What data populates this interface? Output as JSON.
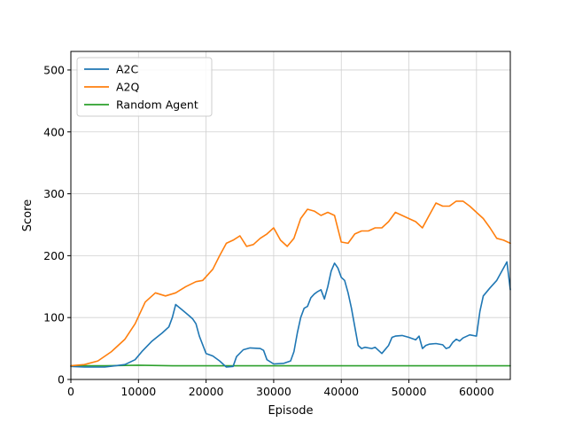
{
  "chart_data": {
    "type": "line",
    "title": "",
    "xlabel": "Episode",
    "ylabel": "Score",
    "xlim": [
      0,
      65000
    ],
    "ylim": [
      0,
      530
    ],
    "xticks": [
      0,
      10000,
      20000,
      30000,
      40000,
      50000,
      60000
    ],
    "yticks": [
      0,
      100,
      200,
      300,
      400,
      500
    ],
    "grid": true,
    "legend_position": "top-left",
    "series": [
      {
        "name": "A2C",
        "color": "#1f77b4",
        "x": [
          0,
          2000,
          5000,
          8000,
          9500,
          10500,
          12000,
          13500,
          14500,
          15000,
          15500,
          16500,
          17500,
          18000,
          18500,
          19000,
          20000,
          21000,
          22000,
          23000,
          24000,
          24500,
          25500,
          26500,
          28000,
          28500,
          29000,
          30000,
          31500,
          32500,
          33000,
          33500,
          34000,
          34500,
          35000,
          35500,
          36000,
          36500,
          37000,
          37500,
          38000,
          38500,
          39000,
          39500,
          40000,
          40500,
          41000,
          41500,
          42000,
          42500,
          43000,
          43500,
          44500,
          45000,
          46000,
          47000,
          47500,
          48000,
          49000,
          50000,
          51000,
          51500,
          52000,
          52500,
          53000,
          54000,
          55000,
          55500,
          56000,
          56500,
          57000,
          57500,
          58000,
          59000,
          60000,
          60500,
          61000,
          62000,
          63000,
          64000,
          64500,
          65000
        ],
        "y": [
          21,
          20,
          20,
          24,
          32,
          45,
          62,
          75,
          85,
          100,
          121,
          112,
          103,
          98,
          90,
          70,
          42,
          38,
          30,
          20,
          21,
          37,
          48,
          51,
          50,
          47,
          32,
          25,
          26,
          30,
          45,
          75,
          100,
          115,
          118,
          132,
          138,
          142,
          145,
          130,
          150,
          175,
          188,
          180,
          165,
          160,
          140,
          115,
          85,
          55,
          50,
          52,
          50,
          52,
          42,
          55,
          68,
          70,
          71,
          68,
          64,
          70,
          50,
          55,
          57,
          58,
          56,
          50,
          52,
          60,
          65,
          62,
          67,
          72,
          70,
          110,
          135,
          148,
          160,
          180,
          190,
          145
        ]
      },
      {
        "name": "A2Q",
        "color": "#ff7f0e",
        "x": [
          0,
          2000,
          4000,
          6000,
          8000,
          9500,
          11000,
          12500,
          14000,
          15500,
          17000,
          18500,
          19500,
          21000,
          22000,
          23000,
          24000,
          25000,
          26000,
          27000,
          28000,
          29000,
          30000,
          31000,
          32000,
          33000,
          34000,
          35000,
          36000,
          37000,
          38000,
          39000,
          40000,
          41000,
          42000,
          43000,
          44000,
          45000,
          46000,
          47000,
          48000,
          49000,
          50000,
          51000,
          52000,
          53000,
          54000,
          55000,
          56000,
          57000,
          58000,
          59000,
          60000,
          61000,
          62000,
          63000,
          64000,
          65000
        ],
        "y": [
          22,
          24,
          30,
          45,
          65,
          90,
          125,
          140,
          135,
          140,
          150,
          158,
          160,
          178,
          200,
          220,
          225,
          232,
          215,
          218,
          228,
          235,
          245,
          225,
          215,
          228,
          260,
          275,
          272,
          265,
          270,
          265,
          222,
          220,
          235,
          240,
          240,
          245,
          245,
          255,
          270,
          265,
          260,
          255,
          245,
          265,
          285,
          280,
          280,
          288,
          288,
          280,
          270,
          260,
          245,
          228,
          225,
          220
        ]
      },
      {
        "name": "Random Agent",
        "color": "#2ca02c",
        "x": [
          0,
          5000,
          10000,
          15000,
          20000,
          25000,
          30000,
          35000,
          40000,
          45000,
          50000,
          55000,
          60000,
          65000
        ],
        "y": [
          22,
          22,
          23,
          22,
          22,
          22,
          22,
          22,
          22,
          22,
          22,
          22,
          22,
          22
        ]
      }
    ]
  }
}
